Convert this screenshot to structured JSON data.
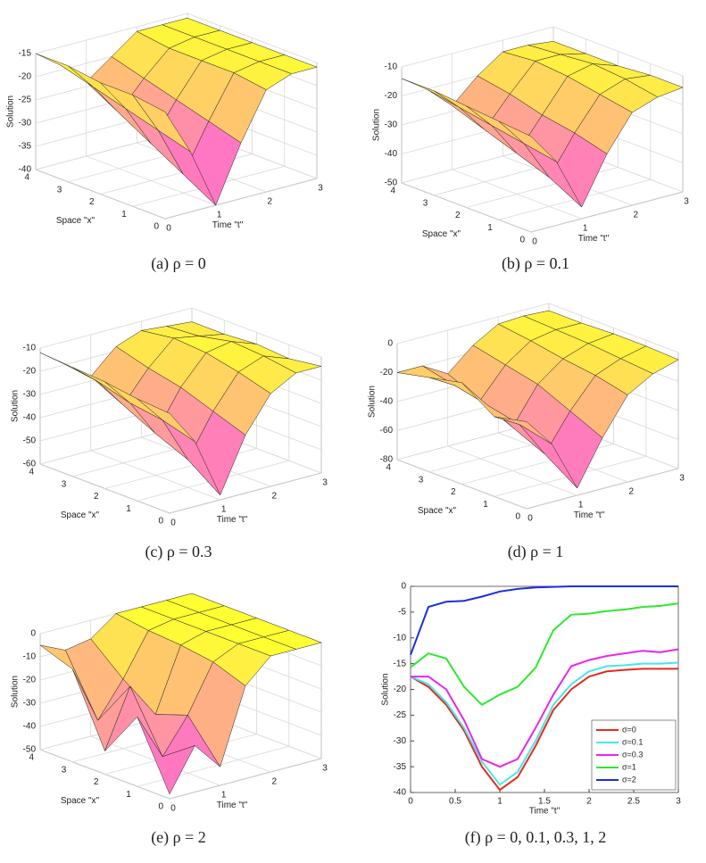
{
  "chart_data": [
    {
      "type": "surface",
      "caption": "(a) ρ = 0",
      "xlabel": "Space \"x\"",
      "tlabel": "Time \"t\"",
      "zlabel": "Solution",
      "t": [
        0,
        0.5,
        1,
        1.5,
        2,
        2.5,
        3
      ],
      "x": [
        0,
        1,
        2,
        3,
        4
      ],
      "z": [
        [
          -17,
          -27,
          -40,
          -28,
          -18,
          -16,
          -16
        ],
        [
          -16,
          -25,
          -36,
          -26,
          -17,
          -16,
          -16
        ],
        [
          -16,
          -23,
          -32,
          -24,
          -17,
          -16,
          -16
        ],
        [
          -15,
          -21,
          -28,
          -22,
          -17,
          -16,
          -16
        ],
        [
          -15,
          -19,
          -24,
          -20,
          -16,
          -16,
          -16
        ]
      ],
      "tlim": [
        0,
        3
      ],
      "xlim": [
        0,
        4
      ],
      "zlim": [
        -40,
        -15
      ],
      "tticks": [
        0,
        1,
        2,
        3
      ],
      "xticks": [
        0,
        1,
        2,
        3,
        4
      ],
      "zticks": [
        -40,
        -35,
        -30,
        -25,
        -20,
        -15
      ],
      "grid": true
    },
    {
      "type": "surface",
      "caption": "(b) ρ = 0.1",
      "xlabel": "Space \"x\"",
      "tlabel": "Time \"t\"",
      "zlabel": "Solution",
      "t": [
        0,
        0.5,
        1,
        1.5,
        2,
        2.5,
        3
      ],
      "x": [
        0,
        1,
        2,
        3,
        4
      ],
      "z": [
        [
          -17,
          -28,
          -46,
          -30,
          -18,
          -15,
          -14
        ],
        [
          -16,
          -26,
          -40,
          -27,
          -16,
          -13,
          -14
        ],
        [
          -15,
          -24,
          -36,
          -25,
          -14,
          -12,
          -15
        ],
        [
          -14,
          -22,
          -32,
          -22,
          -13,
          -13,
          -15
        ],
        [
          -14,
          -20,
          -28,
          -20,
          -14,
          -14,
          -15
        ]
      ],
      "tlim": [
        0,
        3
      ],
      "xlim": [
        0,
        4
      ],
      "zlim": [
        -50,
        -10
      ],
      "tticks": [
        0,
        1,
        2,
        3
      ],
      "xticks": [
        0,
        1,
        2,
        3,
        4
      ],
      "zticks": [
        -50,
        -40,
        -30,
        -20,
        -10
      ],
      "grid": true
    },
    {
      "type": "surface",
      "caption": "(c) ρ = 0.3",
      "xlabel": "Space \"x\"",
      "tlabel": "Time \"t\"",
      "zlabel": "Solution",
      "t": [
        0,
        0.5,
        1,
        1.5,
        2,
        2.5,
        3
      ],
      "x": [
        0,
        1,
        2,
        3,
        4
      ],
      "z": [
        [
          -17,
          -32,
          -58,
          -35,
          -20,
          -14,
          -14
        ],
        [
          -16,
          -28,
          -48,
          -30,
          -16,
          -12,
          -16
        ],
        [
          -14,
          -26,
          -42,
          -25,
          -13,
          -11,
          -15
        ],
        [
          -13,
          -22,
          -35,
          -22,
          -12,
          -14,
          -16
        ],
        [
          -12,
          -20,
          -28,
          -18,
          -14,
          -15,
          -16
        ]
      ],
      "tlim": [
        0,
        3
      ],
      "xlim": [
        0,
        4
      ],
      "zlim": [
        -60,
        -10
      ],
      "tticks": [
        0,
        1,
        2,
        3
      ],
      "xticks": [
        0,
        1,
        2,
        3,
        4
      ],
      "zticks": [
        -60,
        -50,
        -40,
        -30,
        -20,
        -10
      ],
      "grid": true
    },
    {
      "type": "surface",
      "caption": "(d) ρ = 1",
      "xlabel": "Space \"x\"",
      "tlabel": "Time \"t\"",
      "zlabel": "Solution",
      "t": [
        0,
        0.5,
        1,
        1.5,
        2,
        2.5,
        3
      ],
      "x": [
        0,
        1,
        2,
        3,
        4
      ],
      "z": [
        [
          -20,
          -40,
          -75,
          -45,
          -20,
          -10,
          -5
        ],
        [
          -25,
          -35,
          -60,
          -35,
          -15,
          -8,
          -4
        ],
        [
          -10,
          -30,
          -50,
          -25,
          -12,
          -6,
          -4
        ],
        [
          -15,
          -25,
          -40,
          -20,
          -8,
          -5,
          -5
        ],
        [
          -20,
          -20,
          -30,
          -15,
          -5,
          -4,
          -5
        ]
      ],
      "tlim": [
        0,
        3
      ],
      "xlim": [
        0,
        4
      ],
      "zlim": [
        -80,
        0
      ],
      "tticks": [
        0,
        1,
        2,
        3
      ],
      "xticks": [
        0,
        1,
        2,
        3,
        4
      ],
      "zticks": [
        -80,
        -60,
        -40,
        -20,
        0
      ],
      "grid": true
    },
    {
      "type": "surface",
      "caption": "(e) ρ = 2",
      "xlabel": "Space \"x\"",
      "tlabel": "Time \"t\"",
      "zlabel": "Solution",
      "t": [
        0,
        0.5,
        1,
        1.5,
        2,
        2.5,
        3
      ],
      "x": [
        0,
        1,
        2,
        3,
        4
      ],
      "z": [
        [
          -48,
          -30,
          -42,
          -10,
          0,
          0,
          0
        ],
        [
          -20,
          -40,
          -25,
          -5,
          0,
          0,
          0
        ],
        [
          -40,
          -15,
          -30,
          -3,
          0,
          0,
          0
        ],
        [
          -10,
          -35,
          -20,
          -2,
          0,
          0,
          0
        ],
        [
          -5,
          -10,
          -8,
          0,
          0,
          0,
          0
        ]
      ],
      "tlim": [
        0,
        3
      ],
      "xlim": [
        0,
        4
      ],
      "zlim": [
        -50,
        0
      ],
      "tticks": [
        0,
        1,
        2,
        3
      ],
      "xticks": [
        0,
        1,
        2,
        3,
        4
      ],
      "zticks": [
        -50,
        -40,
        -30,
        -20,
        -10,
        0
      ],
      "grid": true
    },
    {
      "type": "line",
      "caption": "(f) ρ = 0, 0.1, 0.3, 1, 2",
      "xlabel": "Time \"t\"",
      "ylabel": "Solution",
      "x": [
        0,
        0.2,
        0.4,
        0.6,
        0.8,
        1.0,
        1.2,
        1.4,
        1.6,
        1.8,
        2.0,
        2.2,
        2.4,
        2.6,
        2.8,
        3.0
      ],
      "series": [
        {
          "name": "σ=0",
          "color": "#e8281e",
          "values": [
            -17.5,
            -19.5,
            -23,
            -28,
            -35,
            -39.5,
            -37,
            -31,
            -24,
            -20,
            -17.5,
            -16.5,
            -16.2,
            -16,
            -16,
            -16
          ]
        },
        {
          "name": "σ=0.1",
          "color": "#44e8e8",
          "values": [
            -17.5,
            -19,
            -22.5,
            -27.5,
            -34,
            -38.5,
            -36,
            -30,
            -23,
            -19,
            -16.5,
            -15.5,
            -15.3,
            -15,
            -15,
            -14.8
          ]
        },
        {
          "name": "σ=0.3",
          "color": "#e826e8",
          "values": [
            -17.5,
            -17.5,
            -20,
            -26,
            -33.5,
            -35,
            -33.5,
            -27.5,
            -21,
            -15.5,
            -14.3,
            -13.5,
            -13,
            -12.5,
            -12.8,
            -12.2
          ]
        },
        {
          "name": "σ=1",
          "color": "#2ee82e",
          "values": [
            -15.7,
            -13,
            -14,
            -19.5,
            -23,
            -21,
            -19.5,
            -15.8,
            -8.5,
            -5.5,
            -5.3,
            -4.8,
            -4.5,
            -4,
            -3.8,
            -3.3
          ]
        },
        {
          "name": "σ=2",
          "color": "#1c2ee0",
          "values": [
            -13.3,
            -4,
            -3,
            -2.8,
            -2,
            -1,
            -0.5,
            -0.2,
            -0.1,
            0,
            0,
            0,
            0,
            0,
            0,
            0
          ]
        }
      ],
      "xlim": [
        0,
        3
      ],
      "ylim": [
        -40,
        0
      ],
      "xticks": [
        0,
        0.5,
        1,
        1.5,
        2,
        2.5,
        3
      ],
      "yticks": [
        -40,
        -35,
        -30,
        -25,
        -20,
        -15,
        -10,
        -5,
        0
      ],
      "legend": "lower right"
    }
  ]
}
